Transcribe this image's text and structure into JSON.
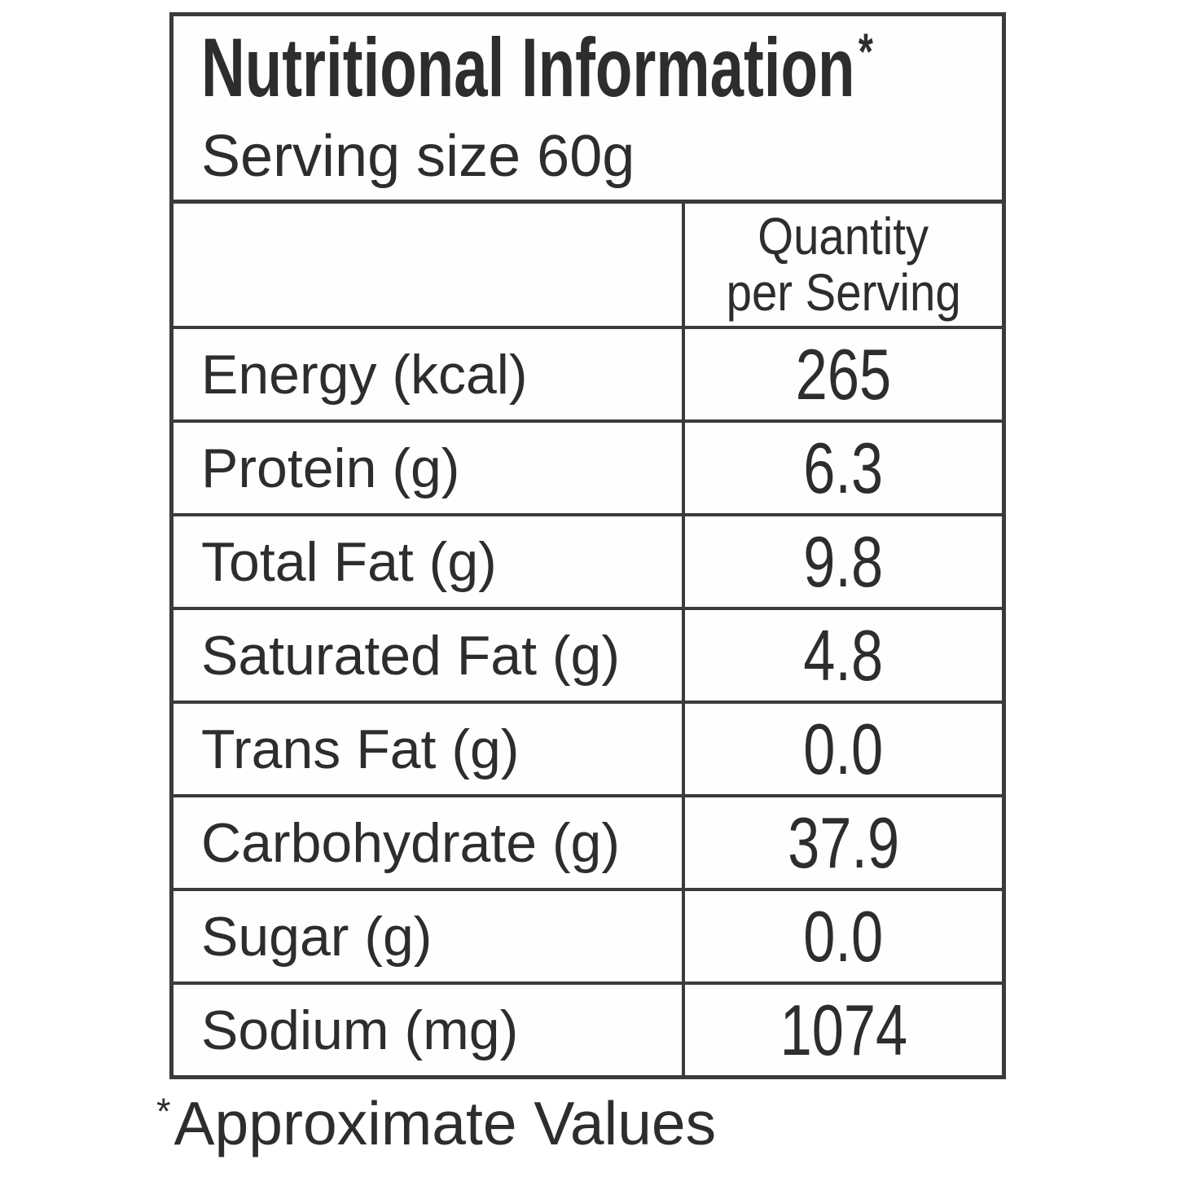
{
  "colors": {
    "text": "#2d2d2d",
    "border": "#3b3b3b",
    "background": "#ffffff"
  },
  "label": {
    "title": "Nutritional Information",
    "title_mark": "*",
    "serving_size": "Serving size 60g",
    "column_header": {
      "line1": "Quantity",
      "line2": "per Serving"
    },
    "rows": [
      {
        "label": "Energy (kcal)",
        "value": "265"
      },
      {
        "label": "Protein (g)",
        "value": "6.3"
      },
      {
        "label": "Total Fat (g)",
        "value": "9.8"
      },
      {
        "label": "Saturated Fat (g)",
        "value": "4.8"
      },
      {
        "label": "Trans Fat (g)",
        "value": "0.0"
      },
      {
        "label": "Carbohydrate (g)",
        "value": "37.9"
      },
      {
        "label": "Sugar (g)",
        "value": "0.0"
      },
      {
        "label": "Sodium (mg)",
        "value": "1074"
      }
    ],
    "footnote_mark": "*",
    "footnote": "Approximate Values"
  }
}
